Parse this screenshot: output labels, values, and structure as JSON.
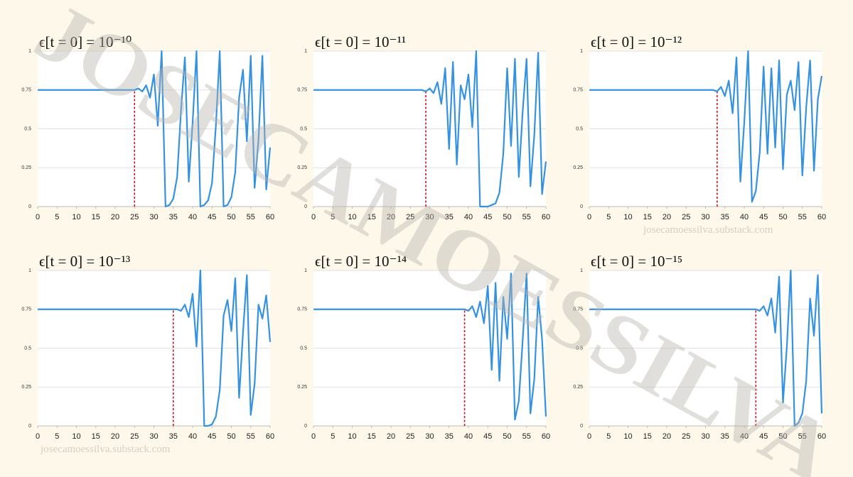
{
  "chart_data": [
    {
      "type": "line",
      "title": "ϵ[t = 0] = 10⁻¹⁰",
      "color": "#3592e2",
      "grid": true,
      "x": [
        0,
        1,
        2,
        3,
        4,
        5,
        6,
        7,
        8,
        9,
        10,
        11,
        12,
        13,
        14,
        15,
        16,
        17,
        18,
        19,
        20,
        21,
        22,
        23,
        24,
        25,
        26,
        27,
        28,
        29,
        30,
        31,
        32,
        33,
        34,
        35,
        36,
        37,
        38,
        39,
        40,
        41,
        42,
        43,
        44,
        45,
        46,
        47,
        48,
        49,
        50,
        51,
        52,
        53,
        54,
        55,
        56,
        57,
        58,
        59,
        60
      ],
      "values": [
        0.75,
        0.75,
        0.75,
        0.75,
        0.75,
        0.75,
        0.75,
        0.75,
        0.75,
        0.75,
        0.75,
        0.75,
        0.75,
        0.75,
        0.75,
        0.75,
        0.75,
        0.75,
        0.75,
        0.75,
        0.75,
        0.75,
        0.75,
        0.75,
        0.75,
        0.75,
        0.76,
        0.74,
        0.78,
        0.7,
        0.85,
        0.52,
        1,
        0,
        0.01,
        0.05,
        0.19,
        0.62,
        0.96,
        0.16,
        0.54,
        1,
        0,
        0.01,
        0.04,
        0.15,
        0.52,
        1,
        0,
        0.01,
        0.06,
        0.22,
        0.7,
        0.88,
        0.42,
        0.97,
        0.12,
        0.43,
        0.97,
        0.11,
        0.38
      ],
      "xlim": [
        0,
        60
      ],
      "xticks": [
        0,
        5,
        10,
        15,
        20,
        25,
        30,
        35,
        40,
        45,
        50,
        55,
        60
      ],
      "ylim": [
        0,
        1
      ],
      "yticks": [
        0,
        0.25,
        0.5,
        0.75,
        1
      ],
      "marker": {
        "x": 25,
        "y": 0.75,
        "color": "#c8141e"
      }
    },
    {
      "type": "line",
      "title": "ϵ[t = 0] = 10⁻¹¹",
      "color": "#3592e2",
      "grid": true,
      "x": [
        0,
        1,
        2,
        3,
        4,
        5,
        6,
        7,
        8,
        9,
        10,
        11,
        12,
        13,
        14,
        15,
        16,
        17,
        18,
        19,
        20,
        21,
        22,
        23,
        24,
        25,
        26,
        27,
        28,
        29,
        30,
        31,
        32,
        33,
        34,
        35,
        36,
        37,
        38,
        39,
        40,
        41,
        42,
        43,
        44,
        45,
        46,
        47,
        48,
        49,
        50,
        51,
        52,
        53,
        54,
        55,
        56,
        57,
        58,
        59,
        60
      ],
      "values": [
        0.75,
        0.75,
        0.75,
        0.75,
        0.75,
        0.75,
        0.75,
        0.75,
        0.75,
        0.75,
        0.75,
        0.75,
        0.75,
        0.75,
        0.75,
        0.75,
        0.75,
        0.75,
        0.75,
        0.75,
        0.75,
        0.75,
        0.75,
        0.75,
        0.75,
        0.75,
        0.75,
        0.75,
        0.75,
        0.74,
        0.76,
        0.73,
        0.8,
        0.66,
        0.89,
        0.37,
        0.93,
        0.27,
        0.78,
        0.69,
        0.85,
        0.51,
        1,
        0,
        0,
        0,
        0.01,
        0.02,
        0.09,
        0.34,
        0.89,
        0.39,
        0.95,
        0.19,
        0.61,
        0.95,
        0.13,
        0.46,
        0.99,
        0.08,
        0.29
      ],
      "xlim": [
        0,
        60
      ],
      "xticks": [
        0,
        5,
        10,
        15,
        20,
        25,
        30,
        35,
        40,
        45,
        50,
        55,
        60
      ],
      "ylim": [
        0,
        1
      ],
      "yticks": [
        0,
        0.25,
        0.5,
        0.75,
        1
      ],
      "marker": {
        "x": 29,
        "y": 0.75,
        "color": "#c8141e"
      }
    },
    {
      "type": "line",
      "title": "ϵ[t = 0] = 10⁻¹²",
      "color": "#3592e2",
      "grid": true,
      "x": [
        0,
        1,
        2,
        3,
        4,
        5,
        6,
        7,
        8,
        9,
        10,
        11,
        12,
        13,
        14,
        15,
        16,
        17,
        18,
        19,
        20,
        21,
        22,
        23,
        24,
        25,
        26,
        27,
        28,
        29,
        30,
        31,
        32,
        33,
        34,
        35,
        36,
        37,
        38,
        39,
        40,
        41,
        42,
        43,
        44,
        45,
        46,
        47,
        48,
        49,
        50,
        51,
        52,
        53,
        54,
        55,
        56,
        57,
        58,
        59,
        60
      ],
      "values": [
        0.75,
        0.75,
        0.75,
        0.75,
        0.75,
        0.75,
        0.75,
        0.75,
        0.75,
        0.75,
        0.75,
        0.75,
        0.75,
        0.75,
        0.75,
        0.75,
        0.75,
        0.75,
        0.75,
        0.75,
        0.75,
        0.75,
        0.75,
        0.75,
        0.75,
        0.75,
        0.75,
        0.75,
        0.75,
        0.75,
        0.75,
        0.75,
        0.75,
        0.74,
        0.77,
        0.71,
        0.81,
        0.6,
        0.96,
        0.16,
        0.54,
        1,
        0.03,
        0.1,
        0.35,
        0.9,
        0.34,
        0.89,
        0.38,
        0.94,
        0.24,
        0.72,
        0.81,
        0.62,
        0.93,
        0.2,
        0.64,
        0.94,
        0.23,
        0.69,
        0.84
      ],
      "xlim": [
        0,
        60
      ],
      "xticks": [
        0,
        5,
        10,
        15,
        20,
        25,
        30,
        35,
        40,
        45,
        50,
        55,
        60
      ],
      "ylim": [
        0,
        1
      ],
      "yticks": [
        0,
        0.25,
        0.5,
        0.75,
        1
      ],
      "marker": {
        "x": 33,
        "y": 0.75,
        "color": "#c8141e"
      }
    },
    {
      "type": "line",
      "title": "ϵ[t = 0] = 10⁻¹³",
      "color": "#3592e2",
      "grid": true,
      "x": [
        0,
        1,
        2,
        3,
        4,
        5,
        6,
        7,
        8,
        9,
        10,
        11,
        12,
        13,
        14,
        15,
        16,
        17,
        18,
        19,
        20,
        21,
        22,
        23,
        24,
        25,
        26,
        27,
        28,
        29,
        30,
        31,
        32,
        33,
        34,
        35,
        36,
        37,
        38,
        39,
        40,
        41,
        42,
        43,
        44,
        45,
        46,
        47,
        48,
        49,
        50,
        51,
        52,
        53,
        54,
        55,
        56,
        57,
        58,
        59,
        60
      ],
      "values": [
        0.75,
        0.75,
        0.75,
        0.75,
        0.75,
        0.75,
        0.75,
        0.75,
        0.75,
        0.75,
        0.75,
        0.75,
        0.75,
        0.75,
        0.75,
        0.75,
        0.75,
        0.75,
        0.75,
        0.75,
        0.75,
        0.75,
        0.75,
        0.75,
        0.75,
        0.75,
        0.75,
        0.75,
        0.75,
        0.75,
        0.75,
        0.75,
        0.75,
        0.75,
        0.75,
        0.75,
        0.75,
        0.74,
        0.78,
        0.7,
        0.85,
        0.51,
        1,
        0,
        0,
        0.01,
        0.06,
        0.23,
        0.71,
        0.81,
        0.61,
        0.95,
        0.18,
        0.6,
        0.97,
        0.07,
        0.27,
        0.78,
        0.69,
        0.84,
        0.54
      ],
      "xlim": [
        0,
        60
      ],
      "xticks": [
        0,
        5,
        10,
        15,
        20,
        25,
        30,
        35,
        40,
        45,
        50,
        55,
        60
      ],
      "ylim": [
        0,
        1
      ],
      "yticks": [
        0,
        0.25,
        0.5,
        0.75,
        1
      ],
      "marker": {
        "x": 35,
        "y": 0.75,
        "color": "#c8141e"
      }
    },
    {
      "type": "line",
      "title": "ϵ[t = 0] = 10⁻¹⁴",
      "color": "#3592e2",
      "grid": true,
      "x": [
        0,
        1,
        2,
        3,
        4,
        5,
        6,
        7,
        8,
        9,
        10,
        11,
        12,
        13,
        14,
        15,
        16,
        17,
        18,
        19,
        20,
        21,
        22,
        23,
        24,
        25,
        26,
        27,
        28,
        29,
        30,
        31,
        32,
        33,
        34,
        35,
        36,
        37,
        38,
        39,
        40,
        41,
        42,
        43,
        44,
        45,
        46,
        47,
        48,
        49,
        50,
        51,
        52,
        53,
        54,
        55,
        56,
        57,
        58,
        59,
        60
      ],
      "values": [
        0.75,
        0.75,
        0.75,
        0.75,
        0.75,
        0.75,
        0.75,
        0.75,
        0.75,
        0.75,
        0.75,
        0.75,
        0.75,
        0.75,
        0.75,
        0.75,
        0.75,
        0.75,
        0.75,
        0.75,
        0.75,
        0.75,
        0.75,
        0.75,
        0.75,
        0.75,
        0.75,
        0.75,
        0.75,
        0.75,
        0.75,
        0.75,
        0.75,
        0.75,
        0.75,
        0.75,
        0.75,
        0.75,
        0.75,
        0.75,
        0.74,
        0.77,
        0.7,
        0.8,
        0.66,
        0.9,
        0.36,
        0.92,
        0.29,
        0.83,
        0.56,
        0.98,
        0.04,
        0.16,
        0.55,
        0.98,
        0.08,
        0.3,
        0.83,
        0.56,
        0.06
      ],
      "xlim": [
        0,
        60
      ],
      "xticks": [
        0,
        5,
        10,
        15,
        20,
        25,
        30,
        35,
        40,
        45,
        50,
        55,
        60
      ],
      "ylim": [
        0,
        1
      ],
      "yticks": [
        0,
        0.25,
        0.5,
        0.75,
        1
      ],
      "marker": {
        "x": 39,
        "y": 0.75,
        "color": "#c8141e"
      }
    },
    {
      "type": "line",
      "title": "ϵ[t = 0] = 10⁻¹⁵",
      "color": "#3592e2",
      "grid": true,
      "x": [
        0,
        1,
        2,
        3,
        4,
        5,
        6,
        7,
        8,
        9,
        10,
        11,
        12,
        13,
        14,
        15,
        16,
        17,
        18,
        19,
        20,
        21,
        22,
        23,
        24,
        25,
        26,
        27,
        28,
        29,
        30,
        31,
        32,
        33,
        34,
        35,
        36,
        37,
        38,
        39,
        40,
        41,
        42,
        43,
        44,
        45,
        46,
        47,
        48,
        49,
        50,
        51,
        52,
        53,
        54,
        55,
        56,
        57,
        58,
        59,
        60
      ],
      "values": [
        0.75,
        0.75,
        0.75,
        0.75,
        0.75,
        0.75,
        0.75,
        0.75,
        0.75,
        0.75,
        0.75,
        0.75,
        0.75,
        0.75,
        0.75,
        0.75,
        0.75,
        0.75,
        0.75,
        0.75,
        0.75,
        0.75,
        0.75,
        0.75,
        0.75,
        0.75,
        0.75,
        0.75,
        0.75,
        0.75,
        0.75,
        0.75,
        0.75,
        0.75,
        0.75,
        0.75,
        0.75,
        0.75,
        0.75,
        0.75,
        0.75,
        0.75,
        0.75,
        0.75,
        0.74,
        0.77,
        0.71,
        0.82,
        0.6,
        0.96,
        0.15,
        0.51,
        1,
        0,
        0.02,
        0.08,
        0.29,
        0.82,
        0.58,
        0.97,
        0.08
      ],
      "xlim": [
        0,
        60
      ],
      "xticks": [
        0,
        5,
        10,
        15,
        20,
        25,
        30,
        35,
        40,
        45,
        50,
        55,
        60
      ],
      "ylim": [
        0,
        1
      ],
      "yticks": [
        0,
        0.25,
        0.5,
        0.75,
        1
      ],
      "marker": {
        "x": 43,
        "y": 0.75,
        "color": "#c8141e"
      }
    }
  ],
  "watermark": "JOSECAMOESSILVA",
  "credits": [
    "josecamoessilva.substack.com",
    "josecamoessilva.substack.com"
  ]
}
